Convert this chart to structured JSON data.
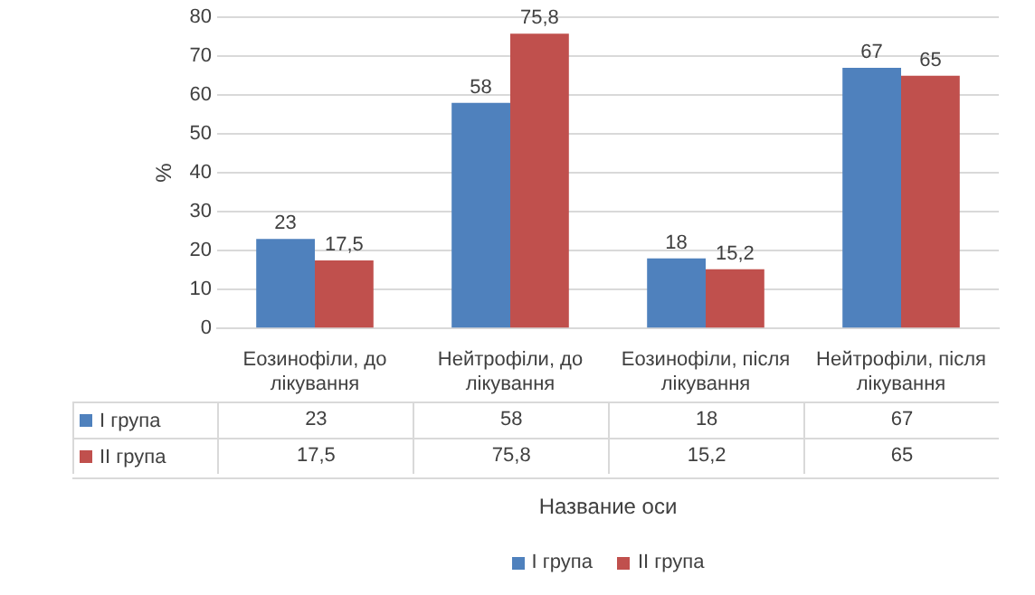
{
  "chart_data": {
    "type": "bar",
    "ylabel": "%",
    "xlabel": "Название оси",
    "categories": [
      "Еозинофіли, до лікування",
      "Нейтрофіли, до лікування",
      "Еозинофіли, після лікування",
      "Нейтрофіли, після лікування"
    ],
    "series": [
      {
        "name": "I група",
        "color": "#4f81bd",
        "values": [
          23,
          58,
          18,
          67
        ],
        "value_labels": [
          "23",
          "58",
          "18",
          "67"
        ]
      },
      {
        "name": "II група",
        "color": "#c0504d",
        "values": [
          17.5,
          75.8,
          15.2,
          65
        ],
        "value_labels": [
          "17,5",
          "75,8",
          "15,2",
          "65"
        ]
      }
    ],
    "ylim": [
      0,
      80
    ],
    "yticks": [
      0,
      10,
      20,
      30,
      40,
      50,
      60,
      70,
      80
    ],
    "grid": "y",
    "legend": "bottom"
  }
}
